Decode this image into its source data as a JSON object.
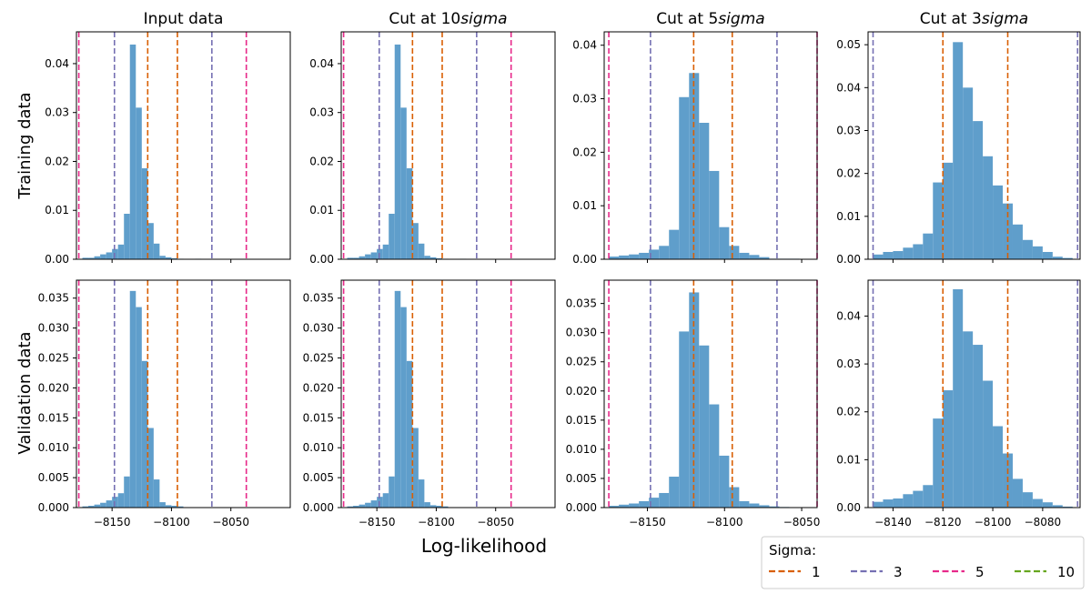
{
  "figure": {
    "row_labels": [
      "Training data",
      "Validation data"
    ],
    "xlabel": "Log-likelihood",
    "legend": {
      "title": "Sigma:",
      "placement": "bottom-right",
      "entries": [
        {
          "label": "1",
          "color": "#d95f02"
        },
        {
          "label": "3",
          "color": "#7570b3"
        },
        {
          "label": "5",
          "color": "#e7298a"
        },
        {
          "label": "10",
          "color": "#66a61e"
        }
      ]
    },
    "colors": {
      "bars": "#5f9ecb"
    }
  },
  "chart_data": [
    {
      "type": "bar",
      "title": "Input data",
      "row": "Training data",
      "xlim": [
        -8180,
        -8000
      ],
      "ylim": [
        0,
        0.0465
      ],
      "yticks": [
        0.0,
        0.01,
        0.02,
        0.03,
        0.04
      ],
      "yformat": 2,
      "xticks": [
        -8150,
        -8100,
        -8050
      ],
      "show_xticks": false,
      "bin_start": -8175,
      "bin_width": 5,
      "values": [
        0.0003,
        0.0003,
        0.0006,
        0.001,
        0.0014,
        0.0021,
        0.003,
        0.0093,
        0.0439,
        0.031,
        0.0186,
        0.0074,
        0.0032,
        0.0007,
        0.0004,
        0.0002,
        0.0001,
        0.0,
        0.0,
        0.0001
      ],
      "sigma_lines": [
        {
          "sigma": "1",
          "values": [
            -8120,
            -8095
          ]
        },
        {
          "sigma": "3",
          "values": [
            -8148,
            -8066
          ]
        },
        {
          "sigma": "5",
          "values": [
            -8178,
            -8037
          ]
        }
      ]
    },
    {
      "type": "bar",
      "title": "Cut at 10$sigma$",
      "row": "Training data",
      "xlim": [
        -8180,
        -8000
      ],
      "ylim": [
        0,
        0.0465
      ],
      "yticks": [
        0.0,
        0.01,
        0.02,
        0.03,
        0.04
      ],
      "yformat": 2,
      "xticks": [
        -8150,
        -8100,
        -8050
      ],
      "show_xticks": false,
      "bin_start": -8175,
      "bin_width": 5,
      "values": [
        0.0003,
        0.0003,
        0.0006,
        0.001,
        0.0014,
        0.0021,
        0.003,
        0.0093,
        0.0439,
        0.031,
        0.0186,
        0.0074,
        0.0032,
        0.0007,
        0.0004,
        0.0002,
        0.0001,
        0.0,
        0.0,
        0.0001
      ],
      "sigma_lines": [
        {
          "sigma": "1",
          "values": [
            -8120,
            -8095
          ]
        },
        {
          "sigma": "3",
          "values": [
            -8148,
            -8066
          ]
        },
        {
          "sigma": "5",
          "values": [
            -8178,
            -8037
          ]
        }
      ]
    },
    {
      "type": "bar",
      "title": "Cut at 5$sigma$",
      "row": "Training data",
      "xlim": [
        -8178,
        -8040
      ],
      "ylim": [
        0,
        0.0425
      ],
      "yticks": [
        0.0,
        0.01,
        0.02,
        0.03,
        0.04
      ],
      "yformat": 2,
      "xticks": [
        -8150,
        -8100,
        -8050
      ],
      "show_xticks": false,
      "bin_start": -8175,
      "bin_width": 6.5,
      "values": [
        0.0005,
        0.0007,
        0.0009,
        0.0012,
        0.0018,
        0.0025,
        0.0055,
        0.0303,
        0.0348,
        0.0255,
        0.0165,
        0.006,
        0.0025,
        0.0012,
        0.0008,
        0.0004,
        0.0001,
        0.0001,
        0.0001,
        0.0
      ],
      "sigma_lines": [
        {
          "sigma": "1",
          "values": [
            -8120,
            -8095
          ]
        },
        {
          "sigma": "3",
          "values": [
            -8148,
            -8066
          ]
        },
        {
          "sigma": "5",
          "values": [
            -8175,
            -8040
          ]
        }
      ]
    },
    {
      "type": "bar",
      "title": "Cut at 3$sigma$",
      "row": "Training data",
      "xlim": [
        -8150,
        -8065
      ],
      "ylim": [
        0,
        0.053
      ],
      "yticks": [
        0.0,
        0.01,
        0.02,
        0.03,
        0.04,
        0.05
      ],
      "yformat": 2,
      "xticks": [
        -8140,
        -8120,
        -8100,
        -8080
      ],
      "show_xticks": false,
      "bin_start": -8148,
      "bin_width": 4,
      "values": [
        0.0011,
        0.0017,
        0.0019,
        0.0027,
        0.0035,
        0.006,
        0.0179,
        0.0225,
        0.0506,
        0.04,
        0.0322,
        0.024,
        0.0172,
        0.013,
        0.0081,
        0.0045,
        0.003,
        0.0017,
        0.0006,
        0.0003
      ],
      "sigma_lines": [
        {
          "sigma": "1",
          "values": [
            -8120,
            -8094
          ]
        },
        {
          "sigma": "3",
          "values": [
            -8148,
            -8066
          ]
        }
      ]
    },
    {
      "type": "bar",
      "title": "",
      "row": "Validation data",
      "xlim": [
        -8180,
        -8000
      ],
      "ylim": [
        0,
        0.038
      ],
      "yticks": [
        0.0,
        0.005,
        0.01,
        0.015,
        0.02,
        0.025,
        0.03,
        0.035
      ],
      "yformat": 3,
      "xticks": [
        -8150,
        -8100,
        -8050
      ],
      "show_xticks": true,
      "bin_start": -8175,
      "bin_width": 5,
      "values": [
        0.0002,
        0.0003,
        0.0005,
        0.0008,
        0.0012,
        0.0018,
        0.0024,
        0.0052,
        0.0362,
        0.0335,
        0.0245,
        0.0133,
        0.0047,
        0.0009,
        0.0004,
        0.0003,
        0.0002,
        0.0,
        0.0,
        0.0
      ],
      "sigma_lines": [
        {
          "sigma": "1",
          "values": [
            -8120,
            -8095
          ]
        },
        {
          "sigma": "3",
          "values": [
            -8148,
            -8066
          ]
        },
        {
          "sigma": "5",
          "values": [
            -8178,
            -8037
          ]
        }
      ]
    },
    {
      "type": "bar",
      "title": "",
      "row": "Validation data",
      "xlim": [
        -8180,
        -8000
      ],
      "ylim": [
        0,
        0.038
      ],
      "yticks": [
        0.0,
        0.005,
        0.01,
        0.015,
        0.02,
        0.025,
        0.03,
        0.035
      ],
      "yformat": 3,
      "xticks": [
        -8150,
        -8100,
        -8050
      ],
      "show_xticks": true,
      "bin_start": -8175,
      "bin_width": 5,
      "values": [
        0.0002,
        0.0003,
        0.0005,
        0.0008,
        0.0012,
        0.0018,
        0.0024,
        0.0052,
        0.0362,
        0.0335,
        0.0245,
        0.0133,
        0.0047,
        0.0009,
        0.0004,
        0.0003,
        0.0002,
        0.0,
        0.0,
        0.0
      ],
      "sigma_lines": [
        {
          "sigma": "1",
          "values": [
            -8120,
            -8095
          ]
        },
        {
          "sigma": "3",
          "values": [
            -8148,
            -8066
          ]
        },
        {
          "sigma": "5",
          "values": [
            -8178,
            -8037
          ]
        }
      ]
    },
    {
      "type": "bar",
      "title": "",
      "row": "Validation data",
      "xlim": [
        -8178,
        -8040
      ],
      "ylim": [
        0,
        0.039
      ],
      "yticks": [
        0.0,
        0.005,
        0.01,
        0.015,
        0.02,
        0.025,
        0.03,
        0.035
      ],
      "yformat": 3,
      "xticks": [
        -8150,
        -8100,
        -8050
      ],
      "show_xticks": true,
      "bin_start": -8175,
      "bin_width": 6.5,
      "values": [
        0.0003,
        0.0005,
        0.0007,
        0.0011,
        0.0017,
        0.0025,
        0.0053,
        0.0302,
        0.0369,
        0.0278,
        0.0177,
        0.0089,
        0.0035,
        0.0011,
        0.0007,
        0.0004,
        0.0002,
        0.0001,
        0.0,
        0.0
      ],
      "sigma_lines": [
        {
          "sigma": "1",
          "values": [
            -8120,
            -8095
          ]
        },
        {
          "sigma": "3",
          "values": [
            -8148,
            -8066
          ]
        },
        {
          "sigma": "5",
          "values": [
            -8175,
            -8040
          ]
        }
      ]
    },
    {
      "type": "bar",
      "title": "",
      "row": "Validation data",
      "xlim": [
        -8150,
        -8065
      ],
      "ylim": [
        0,
        0.0475
      ],
      "yticks": [
        0.0,
        0.01,
        0.02,
        0.03,
        0.04
      ],
      "yformat": 2,
      "xticks": [
        -8140,
        -8120,
        -8100,
        -8080
      ],
      "show_xticks": true,
      "bin_start": -8148,
      "bin_width": 4,
      "values": [
        0.0012,
        0.0017,
        0.0019,
        0.0028,
        0.0035,
        0.0047,
        0.0186,
        0.0245,
        0.0456,
        0.0368,
        0.034,
        0.0265,
        0.017,
        0.0113,
        0.006,
        0.0032,
        0.0018,
        0.0011,
        0.0005,
        0.0002
      ],
      "sigma_lines": [
        {
          "sigma": "1",
          "values": [
            -8120,
            -8094
          ]
        },
        {
          "sigma": "3",
          "values": [
            -8148,
            -8066
          ]
        }
      ]
    }
  ]
}
